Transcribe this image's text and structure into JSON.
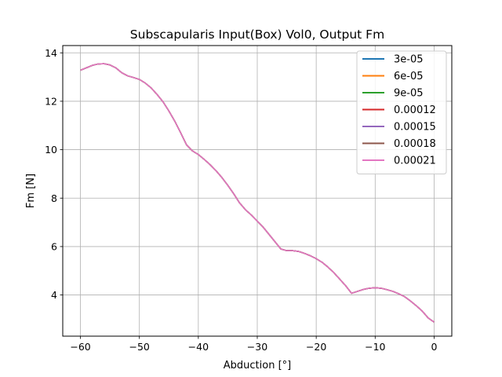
{
  "chart_data": {
    "type": "line",
    "title": "Subscapularis Input(Box) Vol0, Output Fm",
    "xlabel": "Abduction [°]",
    "ylabel": "Fm [N]",
    "xlim": [
      -63,
      3
    ],
    "ylim": [
      2.3,
      14.3
    ],
    "xticks": [
      -60,
      -50,
      -40,
      -30,
      -20,
      -10,
      0
    ],
    "yticks": [
      4,
      6,
      8,
      10,
      12,
      14
    ],
    "grid": true,
    "legend_position": "top-right",
    "x": [
      -60,
      -59,
      -58,
      -57,
      -56,
      -55,
      -54,
      -53,
      -52,
      -51,
      -50,
      -49,
      -48,
      -47,
      -46,
      -45,
      -44,
      -43,
      -42,
      -41,
      -40,
      -39,
      -38,
      -37,
      -36,
      -35,
      -34,
      -33,
      -32,
      -31,
      -30,
      -29,
      -28,
      -27,
      -26,
      -25,
      -24,
      -23,
      -22,
      -21,
      -20,
      -19,
      -18,
      -17,
      -16,
      -15,
      -14,
      -13,
      -12,
      -11,
      -10,
      -9,
      -8,
      -7,
      -6,
      -5,
      -4,
      -3,
      -2,
      -1,
      0
    ],
    "series": [
      {
        "name": "3e-05",
        "color": "#1f77b4",
        "values": [
          13.28,
          13.38,
          13.48,
          13.54,
          13.55,
          13.5,
          13.38,
          13.18,
          13.05,
          12.98,
          12.9,
          12.75,
          12.55,
          12.28,
          11.98,
          11.6,
          11.18,
          10.7,
          10.2,
          9.95,
          9.8,
          9.6,
          9.38,
          9.13,
          8.85,
          8.53,
          8.18,
          7.8,
          7.52,
          7.3,
          7.05,
          6.8,
          6.5,
          6.2,
          5.9,
          5.83,
          5.83,
          5.8,
          5.72,
          5.62,
          5.5,
          5.35,
          5.15,
          4.92,
          4.65,
          4.38,
          4.07,
          4.15,
          4.23,
          4.28,
          4.3,
          4.28,
          4.22,
          4.15,
          4.05,
          3.93,
          3.75,
          3.55,
          3.33,
          3.05,
          2.88
        ]
      },
      {
        "name": "6e-05",
        "color": "#ff7f0e",
        "values": [
          13.28,
          13.38,
          13.48,
          13.54,
          13.55,
          13.5,
          13.38,
          13.18,
          13.05,
          12.98,
          12.9,
          12.75,
          12.55,
          12.28,
          11.98,
          11.6,
          11.18,
          10.7,
          10.2,
          9.95,
          9.8,
          9.6,
          9.38,
          9.13,
          8.85,
          8.53,
          8.18,
          7.8,
          7.52,
          7.3,
          7.05,
          6.8,
          6.5,
          6.2,
          5.9,
          5.83,
          5.83,
          5.8,
          5.72,
          5.62,
          5.5,
          5.35,
          5.15,
          4.92,
          4.65,
          4.38,
          4.07,
          4.15,
          4.23,
          4.28,
          4.3,
          4.28,
          4.22,
          4.15,
          4.05,
          3.93,
          3.75,
          3.55,
          3.33,
          3.05,
          2.88
        ]
      },
      {
        "name": "9e-05",
        "color": "#2ca02c",
        "values": [
          13.28,
          13.38,
          13.48,
          13.54,
          13.55,
          13.5,
          13.38,
          13.18,
          13.05,
          12.98,
          12.9,
          12.75,
          12.55,
          12.28,
          11.98,
          11.6,
          11.18,
          10.7,
          10.2,
          9.95,
          9.8,
          9.6,
          9.38,
          9.13,
          8.85,
          8.53,
          8.18,
          7.8,
          7.52,
          7.3,
          7.05,
          6.8,
          6.5,
          6.2,
          5.9,
          5.83,
          5.83,
          5.8,
          5.72,
          5.62,
          5.5,
          5.35,
          5.15,
          4.92,
          4.65,
          4.38,
          4.07,
          4.15,
          4.23,
          4.28,
          4.3,
          4.28,
          4.22,
          4.15,
          4.05,
          3.93,
          3.75,
          3.55,
          3.33,
          3.05,
          2.88
        ]
      },
      {
        "name": "0.00012",
        "color": "#d62728",
        "values": [
          13.28,
          13.38,
          13.48,
          13.54,
          13.55,
          13.5,
          13.38,
          13.18,
          13.05,
          12.98,
          12.9,
          12.75,
          12.55,
          12.28,
          11.98,
          11.6,
          11.18,
          10.7,
          10.2,
          9.95,
          9.8,
          9.6,
          9.38,
          9.13,
          8.85,
          8.53,
          8.18,
          7.8,
          7.52,
          7.3,
          7.05,
          6.8,
          6.5,
          6.2,
          5.9,
          5.83,
          5.83,
          5.8,
          5.72,
          5.62,
          5.5,
          5.35,
          5.15,
          4.92,
          4.65,
          4.38,
          4.07,
          4.15,
          4.23,
          4.28,
          4.3,
          4.28,
          4.22,
          4.15,
          4.05,
          3.93,
          3.75,
          3.55,
          3.33,
          3.05,
          2.88
        ]
      },
      {
        "name": "0.00015",
        "color": "#9467bd",
        "values": [
          13.28,
          13.38,
          13.48,
          13.54,
          13.55,
          13.5,
          13.38,
          13.18,
          13.05,
          12.98,
          12.9,
          12.75,
          12.55,
          12.28,
          11.98,
          11.6,
          11.18,
          10.7,
          10.2,
          9.95,
          9.8,
          9.6,
          9.38,
          9.13,
          8.85,
          8.53,
          8.18,
          7.8,
          7.52,
          7.3,
          7.05,
          6.8,
          6.5,
          6.2,
          5.9,
          5.83,
          5.83,
          5.8,
          5.72,
          5.62,
          5.5,
          5.35,
          5.15,
          4.92,
          4.65,
          4.38,
          4.07,
          4.15,
          4.23,
          4.28,
          4.3,
          4.28,
          4.22,
          4.15,
          4.05,
          3.93,
          3.75,
          3.55,
          3.33,
          3.05,
          2.88
        ]
      },
      {
        "name": "0.00018",
        "color": "#8c564b",
        "values": [
          13.28,
          13.38,
          13.48,
          13.54,
          13.55,
          13.5,
          13.38,
          13.18,
          13.05,
          12.98,
          12.9,
          12.75,
          12.55,
          12.28,
          11.98,
          11.6,
          11.18,
          10.7,
          10.2,
          9.95,
          9.8,
          9.6,
          9.38,
          9.13,
          8.85,
          8.53,
          8.18,
          7.8,
          7.52,
          7.3,
          7.05,
          6.8,
          6.5,
          6.2,
          5.9,
          5.83,
          5.83,
          5.8,
          5.72,
          5.62,
          5.5,
          5.35,
          5.15,
          4.92,
          4.65,
          4.38,
          4.07,
          4.15,
          4.23,
          4.28,
          4.3,
          4.28,
          4.22,
          4.15,
          4.05,
          3.93,
          3.75,
          3.55,
          3.33,
          3.05,
          2.88
        ]
      },
      {
        "name": "0.00021",
        "color": "#e377c2",
        "values": [
          13.28,
          13.38,
          13.48,
          13.54,
          13.55,
          13.5,
          13.38,
          13.18,
          13.05,
          12.98,
          12.9,
          12.75,
          12.55,
          12.28,
          11.98,
          11.6,
          11.18,
          10.7,
          10.2,
          9.95,
          9.8,
          9.6,
          9.38,
          9.13,
          8.85,
          8.53,
          8.18,
          7.8,
          7.52,
          7.3,
          7.05,
          6.8,
          6.5,
          6.2,
          5.9,
          5.83,
          5.83,
          5.8,
          5.72,
          5.62,
          5.5,
          5.35,
          5.15,
          4.92,
          4.65,
          4.38,
          4.07,
          4.15,
          4.23,
          4.28,
          4.3,
          4.28,
          4.22,
          4.15,
          4.05,
          3.93,
          3.75,
          3.55,
          3.33,
          3.05,
          2.88
        ]
      }
    ]
  }
}
